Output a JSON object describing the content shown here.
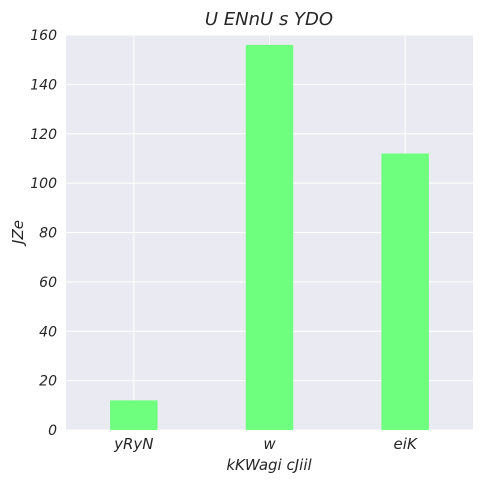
{
  "chart_data": {
    "type": "bar",
    "title": "U ENnU s  YDO",
    "xlabel": "kKWagi cJiil",
    "ylabel": "JZe",
    "categories": [
      "yRyN",
      "w",
      "eiK"
    ],
    "values": [
      12,
      156,
      112
    ],
    "ylim": [
      0,
      160
    ],
    "yticks": [
      0,
      20,
      40,
      60,
      80,
      100,
      120,
      140,
      160
    ],
    "grid": true,
    "bar_color": "#6fff7f",
    "background_color": "#eaeaf2",
    "grid_color": "#ffffff"
  }
}
